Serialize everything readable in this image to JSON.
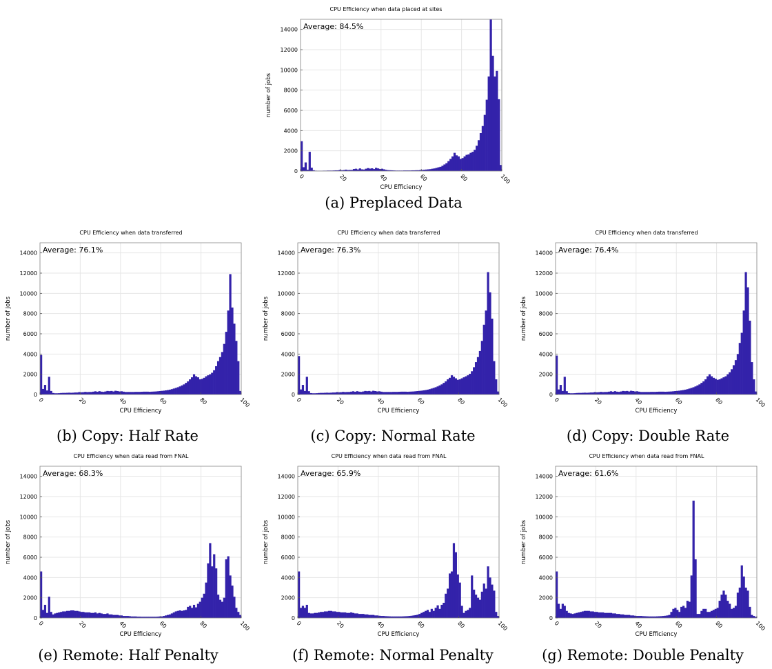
{
  "chart_data": [
    {
      "id": "a",
      "type": "bar",
      "title": "CPU Efficiency when data placed at sites",
      "xlabel": "CPU Efficiency",
      "ylabel": "number of jobs",
      "annotation": "Average: 84.5%",
      "caption": "(a) Preplaced Data",
      "xlim": [
        0,
        100
      ],
      "ylim": [
        0,
        15000
      ],
      "xticks": [
        "0",
        "20",
        "40",
        "60",
        "80",
        "100"
      ],
      "yticks": [
        "0",
        "2000",
        "4000",
        "6000",
        "8000",
        "10000",
        "12000",
        "14000"
      ],
      "grid": true,
      "bar_color": "#3322aa",
      "bin_width": 1,
      "values": [
        2950,
        380,
        850,
        130,
        1900,
        330,
        80,
        40,
        30,
        30,
        30,
        40,
        40,
        50,
        50,
        50,
        60,
        70,
        70,
        110,
        80,
        100,
        140,
        100,
        110,
        110,
        200,
        230,
        160,
        260,
        170,
        150,
        230,
        290,
        240,
        270,
        200,
        320,
        260,
        200,
        230,
        170,
        120,
        90,
        80,
        70,
        60,
        50,
        50,
        50,
        50,
        60,
        60,
        60,
        60,
        70,
        70,
        80,
        80,
        100,
        110,
        130,
        150,
        170,
        190,
        230,
        260,
        310,
        370,
        420,
        520,
        650,
        780,
        980,
        1200,
        1450,
        1800,
        1550,
        1450,
        1200,
        1280,
        1450,
        1600,
        1650,
        1800,
        1900,
        2100,
        2500,
        3050,
        3750,
        4450,
        5550,
        7050,
        9350,
        15000,
        11400,
        9350,
        9900,
        7100,
        600
      ]
    },
    {
      "id": "b",
      "type": "bar",
      "title": "CPU Efficiency when data transferred",
      "xlabel": "CPU Efficiency",
      "ylabel": "number of jobs",
      "annotation": "Average: 76.1%",
      "caption": "(b) Copy: Half Rate",
      "xlim": [
        0,
        100
      ],
      "ylim": [
        0,
        15000
      ],
      "xticks": [
        "0",
        "20",
        "40",
        "60",
        "80",
        "100"
      ],
      "yticks": [
        "0",
        "2000",
        "4000",
        "6000",
        "8000",
        "10000",
        "12000",
        "14000"
      ],
      "grid": true,
      "bar_color": "#3322aa",
      "bin_width": 1,
      "values": [
        3900,
        550,
        950,
        400,
        1750,
        350,
        150,
        120,
        120,
        130,
        150,
        160,
        160,
        170,
        180,
        170,
        180,
        200,
        200,
        240,
        220,
        230,
        260,
        240,
        250,
        250,
        280,
        320,
        270,
        330,
        280,
        260,
        300,
        350,
        330,
        350,
        300,
        370,
        340,
        300,
        320,
        280,
        250,
        250,
        250,
        250,
        250,
        260,
        260,
        260,
        270,
        280,
        280,
        280,
        270,
        280,
        290,
        300,
        320,
        340,
        360,
        380,
        410,
        440,
        480,
        530,
        590,
        650,
        720,
        800,
        900,
        1000,
        1150,
        1300,
        1500,
        1700,
        2000,
        1800,
        1700,
        1500,
        1550,
        1650,
        1800,
        1900,
        2000,
        2150,
        2400,
        2800,
        3300,
        3700,
        4200,
        5000,
        6200,
        8300,
        11900,
        8600,
        7000,
        5300,
        3300,
        350
      ]
    },
    {
      "id": "c",
      "type": "bar",
      "title": "CPU Efficiency when data transferred",
      "xlabel": "CPU Efficiency",
      "ylabel": "number of jobs",
      "annotation": "Average: 76.3%",
      "caption": "(c) Copy: Normal Rate",
      "xlim": [
        0,
        100
      ],
      "ylim": [
        0,
        15000
      ],
      "xticks": [
        "0",
        "20",
        "40",
        "60",
        "80",
        "100"
      ],
      "yticks": [
        "0",
        "2000",
        "4000",
        "6000",
        "8000",
        "10000",
        "12000",
        "14000"
      ],
      "grid": true,
      "bar_color": "#3322aa",
      "bin_width": 1,
      "values": [
        3800,
        500,
        950,
        350,
        1750,
        330,
        140,
        120,
        120,
        130,
        150,
        160,
        160,
        170,
        180,
        170,
        180,
        200,
        200,
        240,
        220,
        230,
        260,
        240,
        250,
        250,
        280,
        320,
        270,
        330,
        280,
        260,
        300,
        350,
        330,
        350,
        300,
        370,
        340,
        300,
        320,
        280,
        250,
        250,
        250,
        250,
        250,
        260,
        260,
        260,
        270,
        280,
        280,
        280,
        270,
        280,
        290,
        300,
        320,
        340,
        360,
        380,
        410,
        440,
        480,
        530,
        590,
        650,
        720,
        800,
        900,
        1000,
        1150,
        1300,
        1500,
        1650,
        1900,
        1750,
        1600,
        1450,
        1500,
        1600,
        1700,
        1800,
        1900,
        2050,
        2300,
        2700,
        3200,
        3700,
        4300,
        5300,
        6900,
        8300,
        12100,
        10100,
        7500,
        3300,
        1500,
        300
      ]
    },
    {
      "id": "d",
      "type": "bar",
      "title": "CPU Efficiency when data transferred",
      "xlabel": "CPU Efficiency",
      "ylabel": "number of jobs",
      "annotation": "Average: 76.4%",
      "caption": "(d) Copy: Double Rate",
      "xlim": [
        0,
        100
      ],
      "ylim": [
        0,
        15000
      ],
      "xticks": [
        "0",
        "20",
        "40",
        "60",
        "80",
        "100"
      ],
      "yticks": [
        "0",
        "2000",
        "4000",
        "6000",
        "8000",
        "10000",
        "12000",
        "14000"
      ],
      "grid": true,
      "bar_color": "#3322aa",
      "bin_width": 1,
      "values": [
        3850,
        500,
        950,
        350,
        1750,
        330,
        140,
        120,
        120,
        130,
        150,
        160,
        160,
        170,
        180,
        170,
        180,
        200,
        200,
        240,
        220,
        230,
        260,
        240,
        250,
        250,
        280,
        320,
        270,
        330,
        280,
        260,
        300,
        350,
        330,
        350,
        300,
        370,
        340,
        300,
        320,
        280,
        250,
        250,
        250,
        250,
        250,
        260,
        260,
        260,
        270,
        280,
        280,
        280,
        270,
        280,
        290,
        300,
        320,
        340,
        360,
        380,
        410,
        440,
        480,
        530,
        590,
        650,
        720,
        800,
        900,
        1000,
        1150,
        1300,
        1500,
        1800,
        2000,
        1800,
        1650,
        1550,
        1450,
        1500,
        1600,
        1700,
        1800,
        2000,
        2200,
        2500,
        2900,
        3400,
        4000,
        5100,
        6100,
        8300,
        12100,
        10600,
        7300,
        3200,
        1500,
        300
      ]
    },
    {
      "id": "e",
      "type": "bar",
      "title": "CPU Efficiency when data read from FNAL",
      "xlabel": "CPU Efficiency",
      "ylabel": "number of jobs",
      "annotation": "Average: 68.3%",
      "caption": "(e) Remote: Half Penalty",
      "xlim": [
        0,
        100
      ],
      "ylim": [
        0,
        15000
      ],
      "xticks": [
        "0",
        "20",
        "40",
        "60",
        "80",
        "100"
      ],
      "yticks": [
        "0",
        "2000",
        "4000",
        "6000",
        "8000",
        "10000",
        "12000",
        "14000"
      ],
      "grid": true,
      "bar_color": "#3322aa",
      "bin_width": 1,
      "values": [
        4600,
        800,
        1300,
        500,
        2100,
        600,
        350,
        450,
        500,
        550,
        600,
        650,
        650,
        700,
        700,
        750,
        750,
        700,
        700,
        650,
        600,
        600,
        550,
        550,
        550,
        500,
        500,
        550,
        450,
        500,
        450,
        400,
        400,
        450,
        350,
        350,
        300,
        300,
        300,
        250,
        250,
        200,
        200,
        200,
        180,
        150,
        150,
        150,
        130,
        130,
        120,
        120,
        120,
        120,
        120,
        120,
        120,
        120,
        130,
        150,
        150,
        200,
        250,
        300,
        350,
        450,
        550,
        650,
        700,
        750,
        700,
        750,
        800,
        1100,
        1200,
        1000,
        1300,
        1050,
        1400,
        1600,
        2000,
        2400,
        3500,
        5400,
        7400,
        5100,
        6300,
        4900,
        2300,
        1800,
        1600,
        2000,
        5800,
        6100,
        4200,
        3200,
        2100,
        1000,
        600,
        300
      ]
    },
    {
      "id": "f",
      "type": "bar",
      "title": "CPU Efficiency when data read from FNAL",
      "xlabel": "CPU Efficiency",
      "ylabel": "number of jobs",
      "annotation": "Average: 65.9%",
      "caption": "(f) Remote: Normal Penalty",
      "xlim": [
        0,
        100
      ],
      "ylim": [
        0,
        15000
      ],
      "xticks": [
        "0",
        "20",
        "40",
        "60",
        "80",
        "100"
      ],
      "yticks": [
        "0",
        "2000",
        "4000",
        "6000",
        "8000",
        "10000",
        "12000",
        "14000"
      ],
      "grid": true,
      "bar_color": "#3322aa",
      "bin_width": 1,
      "values": [
        4600,
        1000,
        1200,
        1000,
        1300,
        500,
        450,
        450,
        500,
        500,
        550,
        600,
        600,
        650,
        650,
        700,
        700,
        650,
        650,
        600,
        600,
        550,
        550,
        550,
        500,
        500,
        550,
        500,
        450,
        450,
        400,
        400,
        400,
        350,
        350,
        300,
        300,
        300,
        250,
        250,
        220,
        200,
        200,
        180,
        170,
        160,
        150,
        150,
        150,
        150,
        150,
        150,
        160,
        170,
        180,
        200,
        220,
        250,
        280,
        320,
        400,
        500,
        600,
        700,
        800,
        600,
        900,
        700,
        1000,
        1250,
        900,
        1300,
        1500,
        2400,
        2900,
        4400,
        4600,
        7400,
        6500,
        4300,
        3500,
        1200,
        500,
        700,
        800,
        1000,
        4200,
        2800,
        2300,
        2000,
        1800,
        2600,
        3400,
        2900,
        5100,
        4000,
        3300,
        2700,
        600,
        200
      ]
    },
    {
      "id": "g",
      "type": "bar",
      "title": "CPU Efficiency when data read from FNAL",
      "xlabel": "CPU Efficiency",
      "ylabel": "number of jobs",
      "annotation": "Average: 61.6%",
      "caption": "(g) Remote: Double Penalty",
      "xlim": [
        0,
        100
      ],
      "ylim": [
        0,
        15000
      ],
      "xticks": [
        "0",
        "20",
        "40",
        "60",
        "80",
        "100"
      ],
      "yticks": [
        "0",
        "2000",
        "4000",
        "6000",
        "8000",
        "10000",
        "12000",
        "14000"
      ],
      "grid": true,
      "bar_color": "#3322aa",
      "bin_width": 1,
      "values": [
        4600,
        1400,
        900,
        1400,
        1200,
        700,
        500,
        450,
        400,
        450,
        500,
        550,
        600,
        650,
        700,
        700,
        700,
        650,
        650,
        600,
        600,
        550,
        550,
        550,
        500,
        500,
        500,
        500,
        450,
        450,
        400,
        400,
        350,
        350,
        300,
        300,
        300,
        250,
        250,
        220,
        200,
        200,
        200,
        180,
        170,
        160,
        150,
        150,
        150,
        150,
        160,
        170,
        180,
        200,
        220,
        250,
        300,
        600,
        900,
        1000,
        800,
        600,
        1100,
        1200,
        1000,
        1700,
        1600,
        4200,
        11600,
        5800,
        400,
        400,
        700,
        900,
        900,
        600,
        600,
        700,
        800,
        900,
        1000,
        1700,
        2300,
        2700,
        2300,
        1700,
        1400,
        900,
        1000,
        1200,
        2500,
        3000,
        5200,
        4100,
        3000,
        2700,
        1100,
        300,
        200,
        100
      ]
    }
  ]
}
